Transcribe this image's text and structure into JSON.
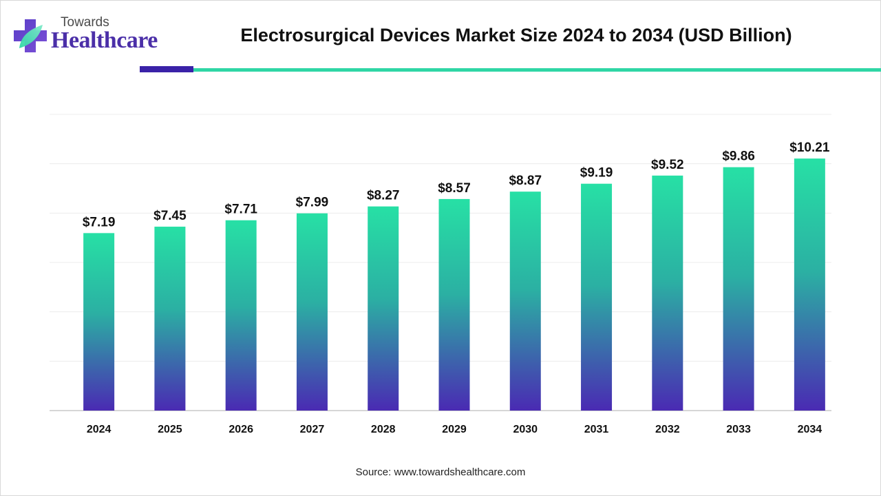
{
  "brand": {
    "small": "Towards",
    "big": "Healthcare",
    "colors": {
      "purple": "#4b2fa8",
      "teal": "#2fd6a5"
    }
  },
  "chart_data": {
    "type": "bar",
    "title": "Electrosurgical Devices Market Size 2024 to 2034 (USD Billion)",
    "categories": [
      "2024",
      "2025",
      "2026",
      "2027",
      "2028",
      "2029",
      "2030",
      "2031",
      "2032",
      "2033",
      "2034"
    ],
    "values": [
      7.19,
      7.45,
      7.71,
      7.99,
      8.27,
      8.57,
      8.87,
      9.19,
      9.52,
      9.86,
      10.21
    ],
    "value_labels": [
      "$7.19",
      "$7.45",
      "$7.71",
      "$7.99",
      "$8.27",
      "$8.57",
      "$8.87",
      "$9.19",
      "$9.52",
      "$9.86",
      "$10.21"
    ],
    "xlabel": "",
    "ylabel": "",
    "ylim": [
      0,
      12
    ],
    "grid": true,
    "legend": "none",
    "bar_gradient": {
      "top": "#27e0a5",
      "bottom": "#4a2ab3"
    }
  },
  "source": "Source: www.towardshealthcare.com"
}
